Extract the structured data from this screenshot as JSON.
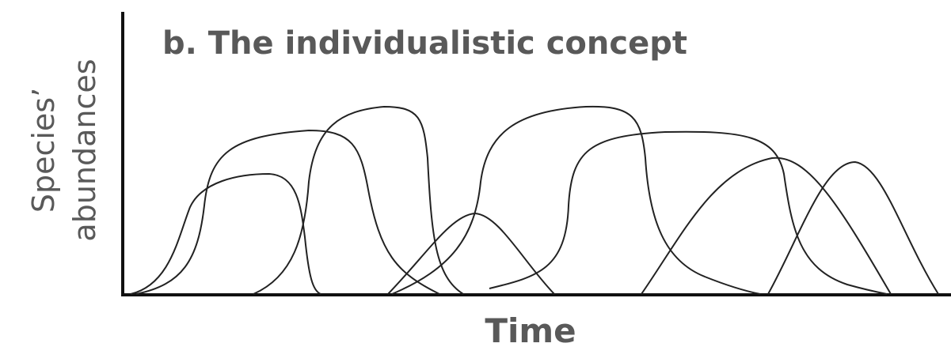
{
  "title": "b. The individualistic concept",
  "y_axis_label": [
    "Species’",
    "abundances"
  ],
  "x_axis_label": "Time"
}
